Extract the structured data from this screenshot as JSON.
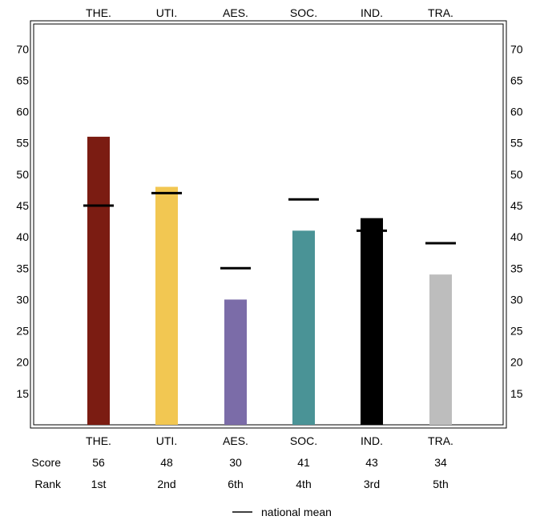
{
  "chart_data": {
    "type": "bar",
    "categories": [
      "THE.",
      "UTI.",
      "AES.",
      "SOC.",
      "IND.",
      "TRA."
    ],
    "values": [
      56,
      48,
      30,
      41,
      43,
      34
    ],
    "national_mean": [
      45,
      47,
      35,
      46,
      41,
      39
    ],
    "ranks": [
      "1st",
      "2nd",
      "6th",
      "4th",
      "3rd",
      "5th"
    ],
    "colors": [
      "#7b1c12",
      "#f2c752",
      "#7b6ca8",
      "#4a9396",
      "#000000",
      "#bdbdbd"
    ],
    "yticks": [
      15,
      20,
      25,
      30,
      35,
      40,
      45,
      50,
      55,
      60,
      65,
      70
    ],
    "ylim": [
      10,
      74
    ],
    "row_labels": {
      "score": "Score",
      "rank": "Rank"
    },
    "legend": {
      "mean_label": "national mean",
      "position": "bottom-center"
    },
    "grid": false
  }
}
